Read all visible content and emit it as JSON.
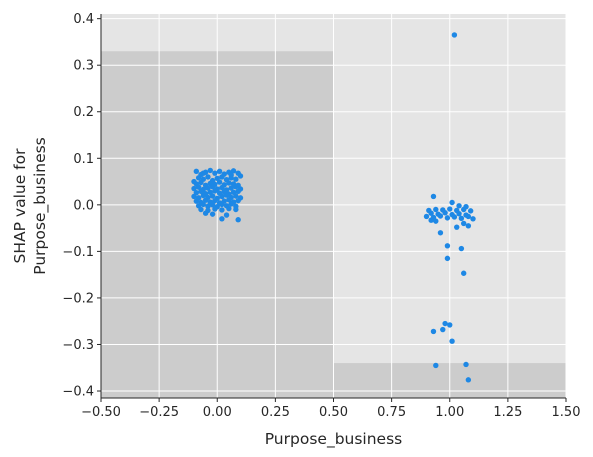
{
  "chart_data": {
    "type": "scatter",
    "xlabel": "Purpose_business",
    "ylabel_lines": [
      "SHAP value for",
      "Purpose_business"
    ],
    "xlim": [
      -0.5,
      1.5
    ],
    "ylim": [
      -0.415,
      0.41
    ],
    "x_ticks": [
      -0.5,
      -0.25,
      0.0,
      0.25,
      0.5,
      0.75,
      1.0,
      1.25,
      1.5
    ],
    "x_tick_labels": [
      "−0.50",
      "−0.25",
      "0.00",
      "0.25",
      "0.50",
      "0.75",
      "1.00",
      "1.25",
      "1.50"
    ],
    "y_ticks": [
      -0.4,
      -0.3,
      -0.2,
      -0.1,
      0.0,
      0.1,
      0.2,
      0.3,
      0.4
    ],
    "y_tick_labels": [
      "−0.4",
      "−0.3",
      "−0.2",
      "−0.1",
      "0.0",
      "0.1",
      "0.2",
      "0.3",
      "0.4"
    ],
    "grid": true,
    "colors": {
      "point": "#1e88e5",
      "background_light": "#e5e5e5",
      "background_dark": "#cccccc",
      "grid": "#ffffff",
      "axis": "#262626"
    },
    "histogram_bins": [
      {
        "x0": -0.5,
        "x1": 0.5,
        "top": 0.33
      },
      {
        "x0": 0.5,
        "x1": 1.5,
        "top": -0.34
      }
    ],
    "series": [
      {
        "x_center": 0.0,
        "points": [
          [
            -0.09,
            0.072
          ],
          [
            -0.07,
            0.065
          ],
          [
            -0.05,
            0.07
          ],
          [
            -0.03,
            0.074
          ],
          [
            -0.01,
            0.068
          ],
          [
            0.01,
            0.072
          ],
          [
            0.03,
            0.066
          ],
          [
            0.05,
            0.07
          ],
          [
            0.07,
            0.073
          ],
          [
            0.09,
            0.068
          ],
          [
            -0.08,
            0.058
          ],
          [
            -0.06,
            0.055
          ],
          [
            -0.04,
            0.06
          ],
          [
            -0.02,
            0.052
          ],
          [
            0.0,
            0.057
          ],
          [
            0.02,
            0.06
          ],
          [
            0.04,
            0.054
          ],
          [
            0.06,
            0.058
          ],
          [
            0.08,
            0.055
          ],
          [
            -0.09,
            0.045
          ],
          [
            -0.07,
            0.048
          ],
          [
            -0.05,
            0.042
          ],
          [
            -0.03,
            0.046
          ],
          [
            -0.01,
            0.044
          ],
          [
            0.01,
            0.049
          ],
          [
            0.03,
            0.043
          ],
          [
            0.05,
            0.047
          ],
          [
            0.07,
            0.045
          ],
          [
            0.09,
            0.042
          ],
          [
            -0.1,
            0.035
          ],
          [
            -0.08,
            0.038
          ],
          [
            -0.06,
            0.033
          ],
          [
            -0.04,
            0.036
          ],
          [
            -0.02,
            0.039
          ],
          [
            0.0,
            0.034
          ],
          [
            0.02,
            0.037
          ],
          [
            0.04,
            0.032
          ],
          [
            0.06,
            0.036
          ],
          [
            0.08,
            0.039
          ],
          [
            0.1,
            0.034
          ],
          [
            -0.09,
            0.026
          ],
          [
            -0.07,
            0.029
          ],
          [
            -0.05,
            0.024
          ],
          [
            -0.03,
            0.027
          ],
          [
            -0.01,
            0.03
          ],
          [
            0.01,
            0.025
          ],
          [
            0.03,
            0.028
          ],
          [
            0.05,
            0.023
          ],
          [
            0.07,
            0.027
          ],
          [
            0.09,
            0.029
          ],
          [
            -0.1,
            0.018
          ],
          [
            -0.08,
            0.015
          ],
          [
            -0.06,
            0.02
          ],
          [
            -0.04,
            0.016
          ],
          [
            -0.02,
            0.019
          ],
          [
            0.0,
            0.014
          ],
          [
            0.02,
            0.018
          ],
          [
            0.04,
            0.021
          ],
          [
            0.06,
            0.016
          ],
          [
            0.08,
            0.019
          ],
          [
            0.1,
            0.015
          ],
          [
            -0.09,
            0.008
          ],
          [
            -0.07,
            0.005
          ],
          [
            -0.05,
            0.01
          ],
          [
            -0.03,
            0.006
          ],
          [
            -0.01,
            0.009
          ],
          [
            0.01,
            0.004
          ],
          [
            0.03,
            0.008
          ],
          [
            0.05,
            0.011
          ],
          [
            0.07,
            0.006
          ],
          [
            0.09,
            0.009
          ],
          [
            -0.08,
            -0.002
          ],
          [
            -0.06,
            0.001
          ],
          [
            -0.04,
            -0.003
          ],
          [
            -0.02,
            0.0
          ],
          [
            0.0,
            -0.004
          ],
          [
            0.02,
            0.001
          ],
          [
            0.04,
            -0.002
          ],
          [
            0.06,
            0.002
          ],
          [
            0.08,
            -0.003
          ],
          [
            -0.07,
            -0.01
          ],
          [
            -0.04,
            -0.012
          ],
          [
            -0.01,
            -0.009
          ],
          [
            0.02,
            -0.011
          ],
          [
            0.05,
            -0.008
          ],
          [
            0.08,
            -0.01
          ],
          [
            -0.02,
            -0.02
          ],
          [
            0.04,
            -0.022
          ],
          [
            -0.05,
            -0.018
          ],
          [
            0.02,
            -0.03
          ],
          [
            0.09,
            -0.032
          ],
          [
            -0.1,
            0.05
          ],
          [
            0.1,
            0.062
          ],
          [
            -0.06,
            0.068
          ],
          [
            0.06,
            0.064
          ]
        ]
      },
      {
        "x_center": 1.0,
        "points": [
          [
            1.02,
            0.365
          ],
          [
            0.93,
            0.018
          ],
          [
            1.01,
            0.005
          ],
          [
            1.04,
            -0.002
          ],
          [
            1.07,
            -0.004
          ],
          [
            0.91,
            -0.012
          ],
          [
            0.94,
            -0.01
          ],
          [
            0.97,
            -0.011
          ],
          [
            1.0,
            -0.009
          ],
          [
            1.03,
            -0.012
          ],
          [
            1.06,
            -0.01
          ],
          [
            1.09,
            -0.013
          ],
          [
            0.92,
            -0.018
          ],
          [
            0.95,
            -0.02
          ],
          [
            0.98,
            -0.017
          ],
          [
            1.01,
            -0.021
          ],
          [
            1.04,
            -0.019
          ],
          [
            1.07,
            -0.022
          ],
          [
            0.9,
            -0.025
          ],
          [
            0.93,
            -0.027
          ],
          [
            0.96,
            -0.024
          ],
          [
            0.99,
            -0.028
          ],
          [
            1.02,
            -0.026
          ],
          [
            1.05,
            -0.029
          ],
          [
            1.08,
            -0.025
          ],
          [
            0.92,
            -0.033
          ],
          [
            1.1,
            -0.03
          ],
          [
            0.94,
            -0.035
          ],
          [
            1.06,
            -0.04
          ],
          [
            1.03,
            -0.048
          ],
          [
            1.08,
            -0.045
          ],
          [
            0.96,
            -0.06
          ],
          [
            0.99,
            -0.088
          ],
          [
            1.05,
            -0.094
          ],
          [
            0.99,
            -0.115
          ],
          [
            1.06,
            -0.147
          ],
          [
            0.98,
            -0.255
          ],
          [
            1.0,
            -0.258
          ],
          [
            0.97,
            -0.268
          ],
          [
            0.93,
            -0.272
          ],
          [
            1.01,
            -0.293
          ],
          [
            0.94,
            -0.345
          ],
          [
            1.07,
            -0.343
          ],
          [
            1.08,
            -0.376
          ]
        ]
      }
    ]
  }
}
